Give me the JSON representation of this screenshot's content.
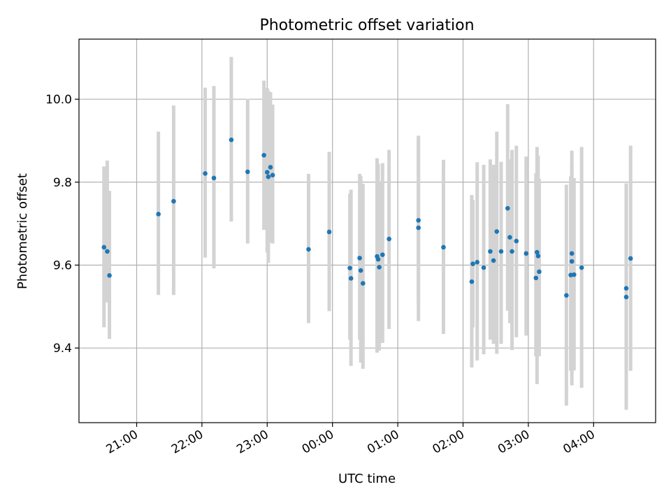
{
  "chart_data": {
    "type": "scatter",
    "title": "Photometric offset variation",
    "xlabel": "UTC time",
    "ylabel": "Photometric offset",
    "x_ticks": [
      "21:00",
      "22:00",
      "23:00",
      "00:00",
      "01:00",
      "02:00",
      "03:00",
      "04:00"
    ],
    "y_ticks": [
      "9.4",
      "9.6",
      "9.8",
      "10.0"
    ],
    "xlim": [
      "20:07",
      "04:57"
    ],
    "ylim": [
      9.22,
      10.145
    ],
    "grid": true,
    "colors": {
      "point": "#1f77b4",
      "errorbar": "#d3d3d3",
      "grid": "#b0b0b0"
    },
    "series": [
      {
        "x": [
          "20:30",
          "20:33",
          "20:35",
          "21:20",
          "21:34",
          "22:03",
          "22:11",
          "22:27",
          "22:42",
          "22:57",
          "23:00",
          "23:01",
          "23:03",
          "23:05",
          "23:38",
          "23:57",
          "00:16",
          "00:17",
          "00:25",
          "00:26",
          "00:28",
          "00:41",
          "00:42",
          "00:43",
          "00:46",
          "00:52",
          "01:19",
          "01:19",
          "01:42",
          "02:08",
          "02:09",
          "02:13",
          "02:19",
          "02:25",
          "02:28",
          "02:31",
          "02:35",
          "02:41",
          "02:43",
          "02:45",
          "02:49",
          "02:58",
          "03:07",
          "03:08",
          "03:09",
          "03:10",
          "03:35",
          "03:39",
          "03:40",
          "03:40",
          "03:42",
          "03:49",
          "04:30",
          "04:30",
          "04:34"
        ],
        "y": [
          9.643,
          9.633,
          9.575,
          9.723,
          9.754,
          9.821,
          9.81,
          9.902,
          9.825,
          9.865,
          9.824,
          9.813,
          9.836,
          9.817,
          9.638,
          9.68,
          9.593,
          9.568,
          9.617,
          9.587,
          9.556,
          9.621,
          9.614,
          9.595,
          9.625,
          9.663,
          9.69,
          9.708,
          9.643,
          9.56,
          9.603,
          9.607,
          9.594,
          9.633,
          9.611,
          9.681,
          9.633,
          9.737,
          9.667,
          9.633,
          9.658,
          9.628,
          9.569,
          9.631,
          9.622,
          9.584,
          9.527,
          9.576,
          9.628,
          9.609,
          9.577,
          9.594,
          9.523,
          9.544,
          9.616
        ],
        "yerr_low": [
          9.45,
          9.51,
          9.422,
          9.528,
          9.528,
          9.618,
          9.592,
          9.705,
          9.652,
          9.685,
          9.63,
          9.605,
          9.654,
          9.652,
          9.46,
          9.489,
          9.42,
          9.357,
          9.42,
          9.365,
          9.35,
          9.389,
          9.398,
          9.394,
          9.412,
          9.446,
          9.509,
          9.465,
          9.434,
          9.353,
          9.45,
          9.37,
          9.385,
          9.42,
          9.41,
          9.386,
          9.41,
          9.49,
          9.46,
          9.395,
          9.426,
          9.43,
          9.38,
          9.313,
          9.386,
          9.38,
          9.261,
          9.345,
          9.34,
          9.31,
          9.346,
          9.304,
          9.251,
          9.44,
          9.345
        ],
        "yerr_high": [
          9.838,
          9.852,
          9.779,
          9.922,
          9.985,
          10.028,
          10.032,
          10.102,
          10.001,
          10.045,
          10.027,
          10.021,
          10.017,
          9.987,
          9.82,
          9.873,
          9.772,
          9.782,
          9.82,
          9.815,
          9.796,
          9.858,
          9.844,
          9.8,
          9.846,
          9.878,
          9.912,
          9.904,
          9.854,
          9.769,
          9.757,
          9.848,
          9.842,
          9.855,
          9.842,
          9.922,
          9.849,
          9.988,
          9.855,
          9.878,
          9.888,
          9.862,
          9.821,
          9.885,
          9.864,
          9.808,
          9.794,
          9.814,
          9.876,
          9.848,
          9.81,
          9.885,
          9.797,
          9.621,
          9.888
        ]
      }
    ]
  }
}
